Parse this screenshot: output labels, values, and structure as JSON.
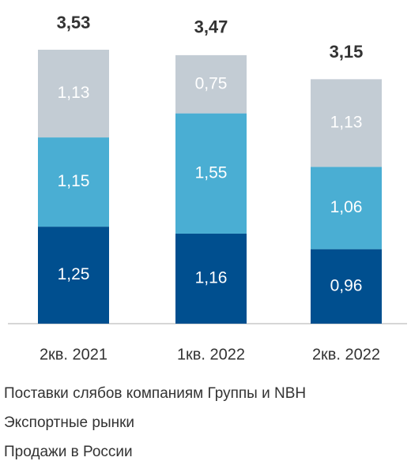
{
  "chart_data": {
    "type": "stacked_bar",
    "categories": [
      "2кв. 2021",
      "1кв. 2022",
      "2кв. 2022"
    ],
    "series": [
      {
        "name": "Поставки слябов компаниям Группы и NBH",
        "color": "#004f8f",
        "values": [
          1.25,
          1.16,
          0.96
        ],
        "value_labels": [
          "1,25",
          "1,16",
          "0,96"
        ]
      },
      {
        "name": "Экспортные рынки",
        "color": "#4aaed3",
        "values": [
          1.15,
          1.55,
          1.06
        ],
        "value_labels": [
          "1,15",
          "1,55",
          "1,06"
        ]
      },
      {
        "name": "Продажи в России",
        "color": "#c3ccd4",
        "values": [
          1.13,
          0.75,
          1.13
        ],
        "value_labels": [
          "1,13",
          "0,75",
          "1,13"
        ]
      }
    ],
    "totals": [
      3.53,
      3.47,
      3.15
    ],
    "total_labels": [
      "3,53",
      "3,47",
      "3,15"
    ]
  }
}
